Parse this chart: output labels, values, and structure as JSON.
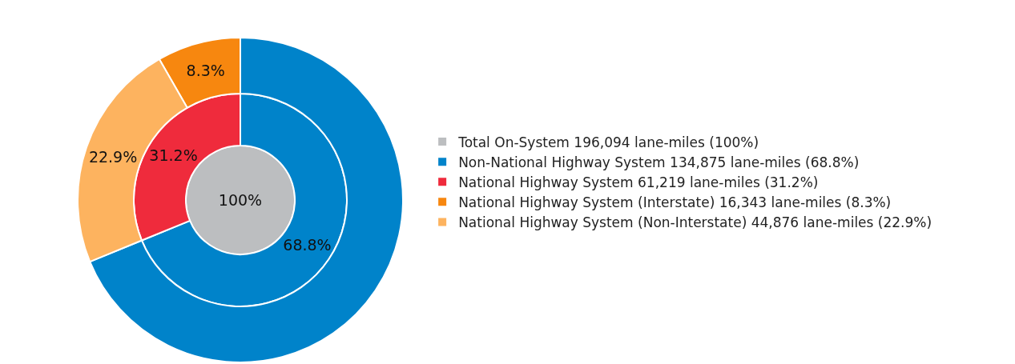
{
  "chart_data": {
    "type": "donut",
    "legend": "right",
    "categories": [
      "Total On-System 196,094 lane-miles (100%)",
      "Non-National Highway System 134,875 lane-miles (68.8%)",
      "National Highway System 61,219 lane-miles (31.2%)",
      "National Highway System (Interstate) 16,343 lane-miles (8.3%)",
      "National Highway System (Non-Interstate) 44,876 lane-miles (22.9%)"
    ],
    "colors": [
      "#bcbec0",
      "#0083ca",
      "#ef2b3c",
      "#f7870f",
      "#fdb35f"
    ],
    "series": [
      {
        "values": [
          100,
          null,
          null,
          null,
          null
        ],
        "value_labels": [
          "100%",
          null,
          null,
          null,
          null
        ]
      },
      {
        "values": [
          null,
          68.8,
          31.2,
          null,
          null
        ],
        "value_labels": [
          null,
          "68.8%",
          "31.2%",
          null,
          null
        ]
      },
      {
        "values": [
          null,
          68.8,
          null,
          8.3,
          22.9
        ],
        "value_labels": [
          null,
          null,
          null,
          "8.3%",
          "22.9%"
        ]
      }
    ]
  }
}
